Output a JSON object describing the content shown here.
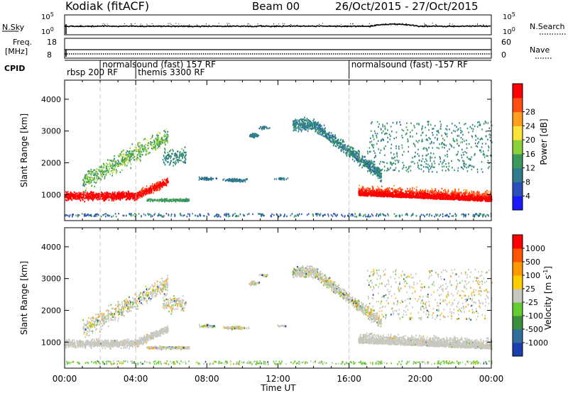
{
  "header": {
    "station": "Kodiak (fitACF)",
    "beam": "Beam 00",
    "date_range": "26/Oct/2015 - 27/Oct/2015"
  },
  "chart_data": [
    {
      "id": "nsky",
      "type": "line",
      "ylabel": "N.Sky",
      "y_ticks": [
        "10^5",
        "10^0"
      ],
      "right_ticks": [
        "10^5",
        "10^0"
      ],
      "right_label": "N.Search"
    },
    {
      "id": "freq",
      "type": "line",
      "ylabel_lines": [
        "Freq.",
        "[MHz]"
      ],
      "y_ticks": [
        "18",
        "8"
      ],
      "right_ticks": [
        "60",
        "0"
      ],
      "right_label": "Nave"
    },
    {
      "id": "cpid",
      "type": "table",
      "label": "CPID",
      "segments": [
        {
          "start_h": 0.0,
          "text": "rbsp 200 RF",
          "row": 2
        },
        {
          "start_h": 2.0,
          "text": "normalsound (fast) 157 RF",
          "row": 1
        },
        {
          "start_h": 4.0,
          "text": "themis 3300 RF",
          "row": 2
        },
        {
          "start_h": 16.0,
          "text": "normalsound (fast) -157 RF",
          "row": 1
        }
      ],
      "dividers_h": [
        2.0,
        4.0,
        16.0
      ]
    },
    {
      "id": "power",
      "type": "heatmap",
      "ylabel": "Slant Range [km]",
      "y_ticks": [
        1000,
        2000,
        3000,
        4000
      ],
      "ylim": [
        180,
        4600
      ],
      "xlim_h": [
        0,
        24
      ],
      "colorbar": {
        "label": "Power [dB]",
        "ticks": [
          "4",
          "8",
          "12",
          "16",
          "20",
          "24",
          "28"
        ],
        "colors": [
          "#1a1aff",
          "#2b4fb8",
          "#2e7c8c",
          "#3a9a5e",
          "#8ccf3a",
          "#ffe23a",
          "#ff9e1f",
          "#ff4d14",
          "#ff0000"
        ]
      }
    },
    {
      "id": "velocity",
      "type": "heatmap",
      "ylabel": "Slant Range [km]",
      "y_ticks": [
        1000,
        2000,
        3000,
        4000
      ],
      "ylim": [
        180,
        4600
      ],
      "xlim_h": [
        0,
        24
      ],
      "x_ticks": [
        "00:00",
        "04:00",
        "08:00",
        "12:00",
        "16:00",
        "20:00",
        "00:00"
      ],
      "xlabel": "Time UT",
      "colorbar": {
        "label": "Velocity [m s^-1]",
        "ticks": [
          "1000",
          "500",
          "100",
          "25",
          "-25",
          "-100",
          "-500",
          "-1000"
        ],
        "colors": [
          "#1c3fb0",
          "#2f6e9e",
          "#3c8e3c",
          "#66cc33",
          "#c8c8c0",
          "#ffcc00",
          "#ff9900",
          "#ff5500",
          "#ff0000"
        ]
      }
    }
  ]
}
